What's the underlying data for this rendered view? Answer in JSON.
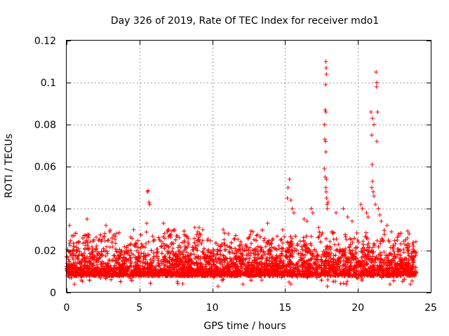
{
  "chart_data": {
    "type": "scatter",
    "title": "Day 326 of 2019, Rate Of TEC Index for receiver mdo1",
    "xlabel": "GPS time / hours",
    "ylabel": "ROTI / TECUs",
    "xlim": [
      0,
      25
    ],
    "ylim": [
      0,
      0.12
    ],
    "xticks": [
      0,
      5,
      10,
      15,
      20,
      25
    ],
    "xtick_labels": [
      "0",
      "5",
      "10",
      "15",
      "20",
      "25"
    ],
    "yticks": [
      0,
      0.02,
      0.04,
      0.06,
      0.08,
      0.1,
      0.12
    ],
    "ytick_labels": [
      "0",
      "0.02",
      "0.04",
      "0.06",
      "0.08",
      "0.1",
      "0.12"
    ],
    "grid": true,
    "marker": "+",
    "color": "#ff0000",
    "series": [
      {
        "name": "ROTI",
        "description": "dense background band ~0.004-0.03 from 0 to 24 h plus spikes",
        "dense_band": {
          "x_range": [
            0,
            24
          ],
          "y_low": 0.004,
          "y_high": 0.03
        },
        "points": [
          [
            5.55,
            0.048
          ],
          [
            5.6,
            0.0485
          ],
          [
            5.65,
            0.043
          ],
          [
            5.7,
            0.042
          ],
          [
            5.5,
            0.033
          ],
          [
            6.65,
            0.033
          ],
          [
            0.2,
            0.032
          ],
          [
            1.4,
            0.035
          ],
          [
            2.7,
            0.032
          ],
          [
            4.6,
            0.03
          ],
          [
            9.0,
            0.029
          ],
          [
            8.8,
            0.031
          ],
          [
            9.1,
            0.031
          ],
          [
            10.75,
            0.03
          ],
          [
            11.1,
            0.028
          ],
          [
            12.8,
            0.029
          ],
          [
            13.8,
            0.033
          ],
          [
            15.2,
            0.05
          ],
          [
            15.3,
            0.054
          ],
          [
            15.15,
            0.045
          ],
          [
            15.4,
            0.044
          ],
          [
            15.5,
            0.04
          ],
          [
            15.6,
            0.038
          ],
          [
            16.3,
            0.035
          ],
          [
            16.5,
            0.034
          ],
          [
            16.8,
            0.04
          ],
          [
            16.9,
            0.038
          ],
          [
            17.3,
            0.031
          ],
          [
            17.7,
            0.08
          ],
          [
            17.8,
            0.086
          ],
          [
            17.75,
            0.087
          ],
          [
            17.72,
            0.073
          ],
          [
            17.78,
            0.072
          ],
          [
            17.8,
            0.067
          ],
          [
            17.7,
            0.059
          ],
          [
            17.75,
            0.055
          ],
          [
            17.85,
            0.054
          ],
          [
            17.8,
            0.05
          ],
          [
            17.82,
            0.048
          ],
          [
            17.85,
            0.045
          ],
          [
            17.88,
            0.042
          ],
          [
            17.9,
            0.04
          ],
          [
            17.8,
            0.11
          ],
          [
            17.82,
            0.107
          ],
          [
            17.84,
            0.104
          ],
          [
            17.78,
            0.099
          ],
          [
            17.95,
            0.043
          ],
          [
            18.5,
            0.038
          ],
          [
            19.0,
            0.04
          ],
          [
            19.3,
            0.036
          ],
          [
            19.6,
            0.034
          ],
          [
            20.2,
            0.042
          ],
          [
            20.3,
            0.04
          ],
          [
            20.6,
            0.038
          ],
          [
            20.7,
            0.036
          ],
          [
            20.9,
            0.086
          ],
          [
            21.0,
            0.083
          ],
          [
            20.95,
            0.075
          ],
          [
            21.1,
            0.08
          ],
          [
            20.98,
            0.061
          ],
          [
            21.25,
            0.105
          ],
          [
            21.3,
            0.1
          ],
          [
            21.28,
            0.098
          ],
          [
            21.35,
            0.086
          ],
          [
            21.3,
            0.072
          ],
          [
            21.0,
            0.053
          ],
          [
            20.95,
            0.05
          ],
          [
            21.05,
            0.048
          ],
          [
            21.1,
            0.046
          ],
          [
            21.2,
            0.042
          ],
          [
            21.4,
            0.04
          ],
          [
            21.5,
            0.037
          ],
          [
            21.6,
            0.034
          ],
          [
            22.0,
            0.032
          ],
          [
            22.3,
            0.029
          ],
          [
            22.8,
            0.027
          ],
          [
            23.4,
            0.026
          ],
          [
            23.8,
            0.024
          ],
          [
            10.4,
            0.003
          ],
          [
            12.1,
            0.004
          ],
          [
            15.4,
            0.004
          ],
          [
            17.9,
            0.003
          ],
          [
            19.2,
            0.004
          ],
          [
            22.2,
            0.004
          ],
          [
            23.6,
            0.004
          ]
        ]
      }
    ]
  }
}
